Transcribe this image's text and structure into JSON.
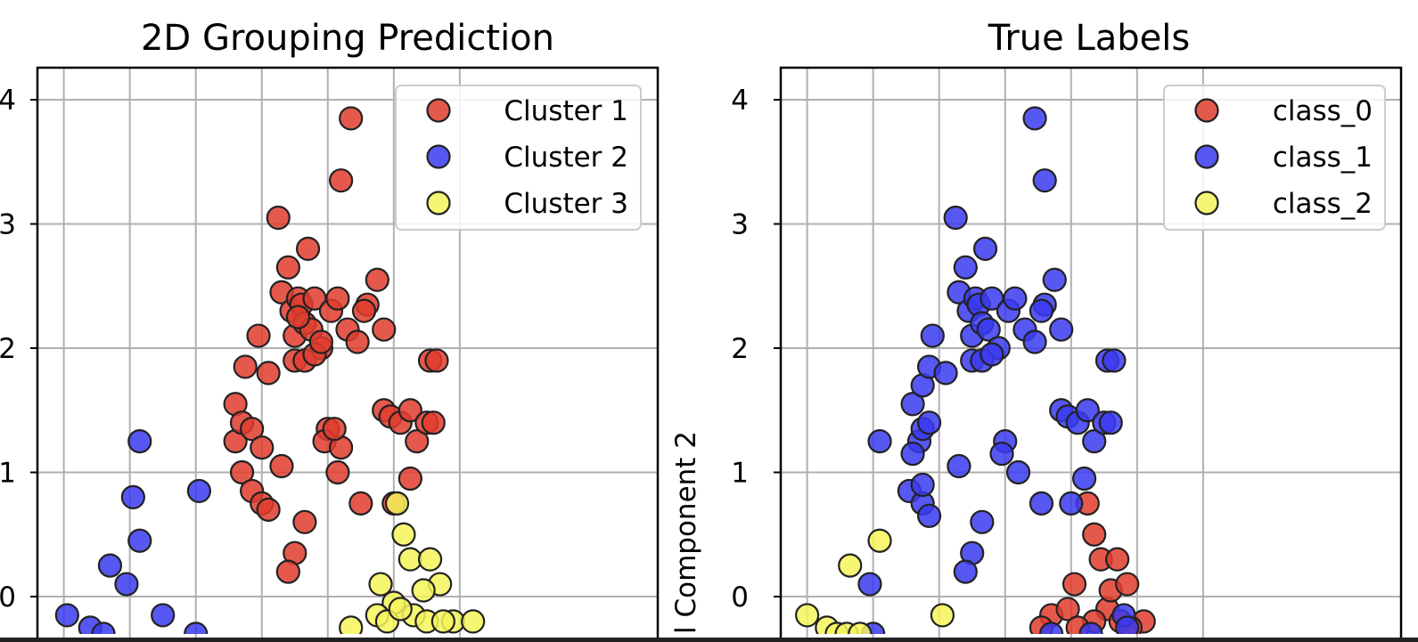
{
  "colors": {
    "red": "#e03c2e",
    "blue": "#3a3af0",
    "yellow": "#f5f55a",
    "grid": "#b0b0b0",
    "edge": "#222222"
  },
  "chart_data": [
    {
      "type": "scatter",
      "title": "2D Grouping Prediction",
      "xlabel": "",
      "ylabel": "",
      "xlim": [
        -4.4,
        5.0
      ],
      "ylim": [
        -0.25,
        4.25
      ],
      "yticks": [
        0,
        1,
        2,
        3,
        4
      ],
      "xgrid": [
        -4,
        -3,
        -2,
        -1,
        0,
        1,
        2
      ],
      "grid": true,
      "legend": "top-right",
      "series": [
        {
          "name": "Cluster 1",
          "color": "red",
          "points": [
            [
              -1.4,
              1.25
            ],
            [
              -1.3,
              1.0
            ],
            [
              -1.15,
              0.85
            ],
            [
              -1.0,
              0.75
            ],
            [
              -0.9,
              0.7
            ],
            [
              -1.05,
              2.1
            ],
            [
              -1.25,
              1.85
            ],
            [
              -1.4,
              1.55
            ],
            [
              -1.3,
              1.4
            ],
            [
              -1.15,
              1.35
            ],
            [
              -0.9,
              1.8
            ],
            [
              -0.75,
              3.05
            ],
            [
              -0.7,
              2.45
            ],
            [
              -0.6,
              2.65
            ],
            [
              -0.55,
              2.3
            ],
            [
              -0.5,
              2.1
            ],
            [
              -0.45,
              2.4
            ],
            [
              -0.4,
              2.35
            ],
            [
              -0.35,
              2.2
            ],
            [
              -0.3,
              2.8
            ],
            [
              -0.25,
              2.15
            ],
            [
              -0.2,
              2.4
            ],
            [
              -0.1,
              2.0
            ],
            [
              0.0,
              1.35
            ],
            [
              0.05,
              2.3
            ],
            [
              0.15,
              2.4
            ],
            [
              0.3,
              2.15
            ],
            [
              0.45,
              2.05
            ],
            [
              0.6,
              2.35
            ],
            [
              0.75,
              2.55
            ],
            [
              0.2,
              3.35
            ],
            [
              0.35,
              3.85
            ],
            [
              0.55,
              2.3
            ],
            [
              0.85,
              1.5
            ],
            [
              0.95,
              1.45
            ],
            [
              1.1,
              1.4
            ],
            [
              1.25,
              1.5
            ],
            [
              1.35,
              1.25
            ],
            [
              1.5,
              1.4
            ],
            [
              1.6,
              1.4
            ],
            [
              0.85,
              2.15
            ],
            [
              -0.5,
              1.9
            ],
            [
              -0.35,
              1.9
            ],
            [
              -0.2,
              1.95
            ],
            [
              -0.7,
              1.05
            ],
            [
              -0.5,
              0.35
            ],
            [
              -0.6,
              0.2
            ],
            [
              -0.35,
              0.6
            ],
            [
              -0.05,
              1.25
            ],
            [
              0.15,
              1.0
            ],
            [
              0.5,
              0.75
            ],
            [
              1.0,
              0.75
            ],
            [
              1.25,
              0.95
            ],
            [
              1.55,
              1.9
            ],
            [
              1.65,
              1.9
            ],
            [
              -1.0,
              1.2
            ],
            [
              0.2,
              1.2
            ],
            [
              0.1,
              1.35
            ],
            [
              -0.1,
              2.05
            ],
            [
              -0.45,
              2.25
            ]
          ]
        },
        {
          "name": "Cluster 2",
          "color": "blue",
          "points": [
            [
              -2.85,
              1.25
            ],
            [
              -2.95,
              0.8
            ],
            [
              -2.85,
              0.45
            ],
            [
              -3.3,
              0.25
            ],
            [
              -3.05,
              0.1
            ],
            [
              -3.95,
              -0.15
            ],
            [
              -3.6,
              -0.25
            ],
            [
              -3.4,
              -0.3
            ],
            [
              -2.5,
              -0.15
            ],
            [
              -1.95,
              0.85
            ],
            [
              -2.0,
              -0.3
            ]
          ]
        },
        {
          "name": "Cluster 3",
          "color": "yellow",
          "points": [
            [
              0.8,
              0.1
            ],
            [
              1.05,
              0.75
            ],
            [
              1.15,
              0.5
            ],
            [
              1.25,
              0.3
            ],
            [
              1.55,
              0.3
            ],
            [
              1.7,
              0.1
            ],
            [
              1.45,
              0.05
            ],
            [
              1.0,
              -0.05
            ],
            [
              0.75,
              -0.15
            ],
            [
              0.9,
              -0.2
            ],
            [
              1.3,
              -0.15
            ],
            [
              1.5,
              -0.2
            ],
            [
              1.9,
              -0.2
            ],
            [
              2.2,
              -0.2
            ],
            [
              0.35,
              -0.25
            ],
            [
              1.1,
              -0.1
            ],
            [
              1.75,
              -0.2
            ]
          ]
        }
      ]
    },
    {
      "type": "scatter",
      "title": "True Labels",
      "xlabel": "",
      "ylabel": "l Component 2",
      "xlim": [
        -3.4,
        6.0
      ],
      "ylim": [
        -0.25,
        4.25
      ],
      "yticks": [
        0,
        1,
        2,
        3,
        4
      ],
      "xgrid": [
        -3,
        -2,
        -1,
        0,
        1,
        2,
        3
      ],
      "grid": true,
      "legend": "top-right",
      "series": [
        {
          "name": "class_0",
          "color": "red",
          "points": [
            [
              0.7,
              -0.15
            ],
            [
              0.95,
              -0.1
            ],
            [
              1.05,
              0.1
            ],
            [
              1.25,
              0.75
            ],
            [
              1.35,
              0.5
            ],
            [
              1.45,
              0.3
            ],
            [
              1.55,
              -0.1
            ],
            [
              1.6,
              0.05
            ],
            [
              1.7,
              0.3
            ],
            [
              1.75,
              -0.2
            ],
            [
              1.85,
              0.1
            ],
            [
              2.1,
              -0.2
            ],
            [
              1.35,
              -0.2
            ],
            [
              1.1,
              -0.25
            ],
            [
              1.9,
              -0.25
            ],
            [
              0.55,
              -0.25
            ]
          ]
        },
        {
          "name": "class_1",
          "color": "blue",
          "points": [
            [
              -1.3,
              1.25
            ],
            [
              -1.4,
              1.15
            ],
            [
              -1.25,
              1.35
            ],
            [
              -1.15,
              1.4
            ],
            [
              -1.4,
              1.55
            ],
            [
              -1.25,
              1.7
            ],
            [
              -1.15,
              1.85
            ],
            [
              -1.1,
              2.1
            ],
            [
              -0.9,
              1.8
            ],
            [
              -0.75,
              3.05
            ],
            [
              -0.7,
              2.45
            ],
            [
              -0.6,
              2.65
            ],
            [
              -0.55,
              2.3
            ],
            [
              -0.5,
              2.1
            ],
            [
              -0.45,
              2.4
            ],
            [
              -0.4,
              2.35
            ],
            [
              -0.35,
              2.2
            ],
            [
              -0.3,
              2.8
            ],
            [
              -0.25,
              2.15
            ],
            [
              -0.2,
              2.4
            ],
            [
              -0.1,
              2.0
            ],
            [
              0.0,
              1.25
            ],
            [
              0.05,
              2.3
            ],
            [
              0.15,
              2.4
            ],
            [
              0.3,
              2.15
            ],
            [
              0.45,
              2.05
            ],
            [
              0.6,
              2.35
            ],
            [
              0.75,
              2.55
            ],
            [
              0.45,
              3.85
            ],
            [
              0.6,
              3.35
            ],
            [
              0.55,
              2.3
            ],
            [
              0.85,
              1.5
            ],
            [
              0.95,
              1.45
            ],
            [
              1.1,
              1.4
            ],
            [
              1.25,
              1.5
            ],
            [
              1.35,
              1.25
            ],
            [
              1.5,
              1.4
            ],
            [
              1.6,
              1.4
            ],
            [
              0.85,
              2.15
            ],
            [
              -0.5,
              1.9
            ],
            [
              -0.35,
              1.9
            ],
            [
              -0.2,
              1.95
            ],
            [
              -0.7,
              1.05
            ],
            [
              -0.5,
              0.35
            ],
            [
              -0.6,
              0.2
            ],
            [
              -0.35,
              0.6
            ],
            [
              -0.05,
              1.15
            ],
            [
              0.2,
              1.0
            ],
            [
              0.55,
              0.75
            ],
            [
              1.0,
              0.75
            ],
            [
              1.2,
              0.95
            ],
            [
              1.55,
              1.9
            ],
            [
              1.65,
              1.9
            ],
            [
              -1.45,
              0.85
            ],
            [
              -1.25,
              0.75
            ],
            [
              -1.15,
              0.65
            ],
            [
              -1.25,
              0.9
            ],
            [
              -2.05,
              0.1
            ],
            [
              -1.9,
              1.25
            ],
            [
              -2.0,
              -0.3
            ],
            [
              0.7,
              -0.3
            ],
            [
              1.3,
              -0.3
            ],
            [
              1.8,
              -0.15
            ],
            [
              1.85,
              -0.25
            ]
          ]
        },
        {
          "name": "class_2",
          "color": "yellow",
          "points": [
            [
              -1.9,
              0.45
            ],
            [
              -2.35,
              0.25
            ],
            [
              -3.0,
              -0.15
            ],
            [
              -2.7,
              -0.25
            ],
            [
              -2.55,
              -0.3
            ],
            [
              -2.4,
              -0.3
            ],
            [
              -2.2,
              -0.3
            ],
            [
              -0.95,
              -0.15
            ]
          ]
        }
      ]
    }
  ]
}
